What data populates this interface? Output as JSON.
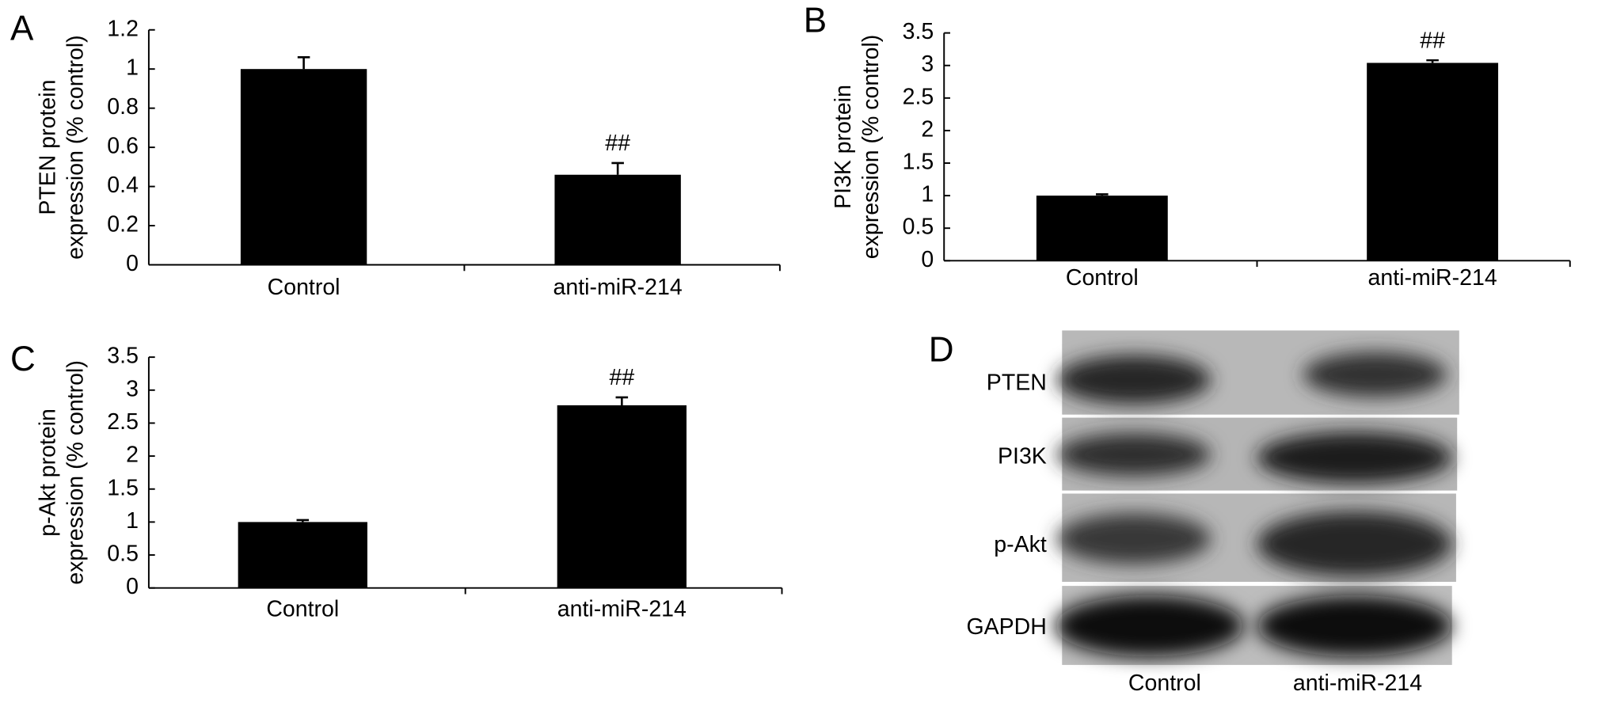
{
  "chart_data": [
    {
      "type": "bar",
      "panel_label": "A",
      "y_label": [
        "PTEN protein",
        "expression (% control)"
      ],
      "categories": [
        "Control",
        "anti-miR-214"
      ],
      "values": [
        1.0,
        0.46
      ],
      "errors": [
        0.06,
        0.06
      ],
      "value_annotations": [
        null,
        "##"
      ],
      "color": "#000000",
      "ylim": [
        0,
        1.2
      ],
      "yticks": [
        0,
        0.2,
        0.4,
        0.6,
        0.8,
        1,
        1.2
      ]
    },
    {
      "type": "bar",
      "panel_label": "B",
      "y_label": [
        "PI3K protein",
        "expression (% control)"
      ],
      "categories": [
        "Control",
        "anti-miR-214"
      ],
      "values": [
        1.0,
        3.04
      ],
      "errors": [
        0.02,
        0.04
      ],
      "value_annotations": [
        null,
        "##"
      ],
      "color": "#000000",
      "ylim": [
        0,
        3.5
      ],
      "yticks": [
        0,
        0.5,
        1,
        1.5,
        2,
        2.5,
        3,
        3.5
      ]
    },
    {
      "type": "bar",
      "panel_label": "C",
      "y_label": [
        "p-Akt protein",
        "expression (% control)"
      ],
      "categories": [
        "Control",
        "anti-miR-214"
      ],
      "values": [
        1.0,
        2.77
      ],
      "errors": [
        0.03,
        0.12
      ],
      "value_annotations": [
        null,
        "##"
      ],
      "color": "#000000",
      "ylim": [
        0,
        3.5
      ],
      "yticks": [
        0,
        0.5,
        1,
        1.5,
        2,
        2.5,
        3,
        3.5
      ]
    }
  ],
  "blot": {
    "panel_label": "D",
    "rows": [
      "PTEN",
      "PI3K",
      "p-Akt",
      "GAPDH"
    ],
    "columns": [
      "Control",
      "anti-miR-214"
    ]
  }
}
